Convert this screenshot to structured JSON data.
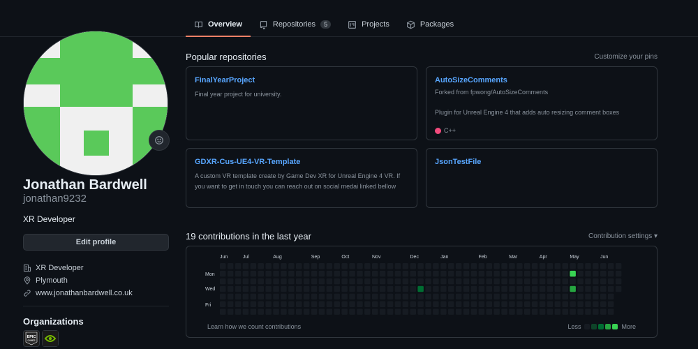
{
  "tabs": [
    {
      "label": "Overview",
      "icon": "book-icon",
      "active": true
    },
    {
      "label": "Repositories",
      "icon": "repo-icon",
      "count": "5"
    },
    {
      "label": "Projects",
      "icon": "project-icon"
    },
    {
      "label": "Packages",
      "icon": "package-icon"
    }
  ],
  "profile": {
    "name": "Jonathan Bardwell",
    "username": "jonathan9232",
    "bio": "XR Developer",
    "edit_label": "Edit profile",
    "details": [
      {
        "icon": "organization-icon",
        "text": "XR Developer"
      },
      {
        "icon": "location-icon",
        "text": "Plymouth"
      },
      {
        "icon": "link-icon",
        "text": "www.jonathanbardwell.co.uk"
      }
    ],
    "organizations_title": "Organizations",
    "organizations": [
      {
        "name": "EPIC",
        "sub": "GAMES"
      },
      {
        "name": "NVIDIA"
      }
    ]
  },
  "popular": {
    "title": "Popular repositories",
    "customize_label": "Customize your pins",
    "repos": [
      {
        "name": "FinalYearProject",
        "description": "Final year project for university."
      },
      {
        "name": "AutoSizeComments",
        "forked_from": "Forked from fpwong/AutoSizeComments",
        "description": "Plugin for Unreal Engine 4 that adds auto resizing comment boxes",
        "language": "C++",
        "language_color": "#f34b7d"
      },
      {
        "name": "GDXR-Cus-UE4-VR-Template",
        "description": "A custom VR template create by Game Dev XR for Unreal Engine 4 VR. If you want to get in touch you can reach out on social medai linked bellow"
      },
      {
        "name": "JsonTestFile"
      }
    ]
  },
  "contributions": {
    "title": "19 contributions in the last year",
    "settings_label": "Contribution settings ▾",
    "months": [
      "Jun",
      "Jul",
      "Aug",
      "Sep",
      "Oct",
      "Nov",
      "Dec",
      "Jan",
      "Feb",
      "Mar",
      "Apr",
      "May",
      "Jun"
    ],
    "days": [
      "Mon",
      "Wed",
      "Fri"
    ],
    "learn_label": "Learn how we count contributions",
    "less_label": "Less",
    "more_label": "More",
    "colors": {
      "empty": "#161b22",
      "l1": "#0e4429",
      "l2": "#006d32",
      "l3": "#26a641",
      "l4": "#39d353"
    },
    "active_cells": [
      {
        "week": 26,
        "day": 3,
        "level": 2
      },
      {
        "week": 46,
        "day": 1,
        "level": 4
      },
      {
        "week": 46,
        "day": 3,
        "level": 3
      }
    ]
  }
}
